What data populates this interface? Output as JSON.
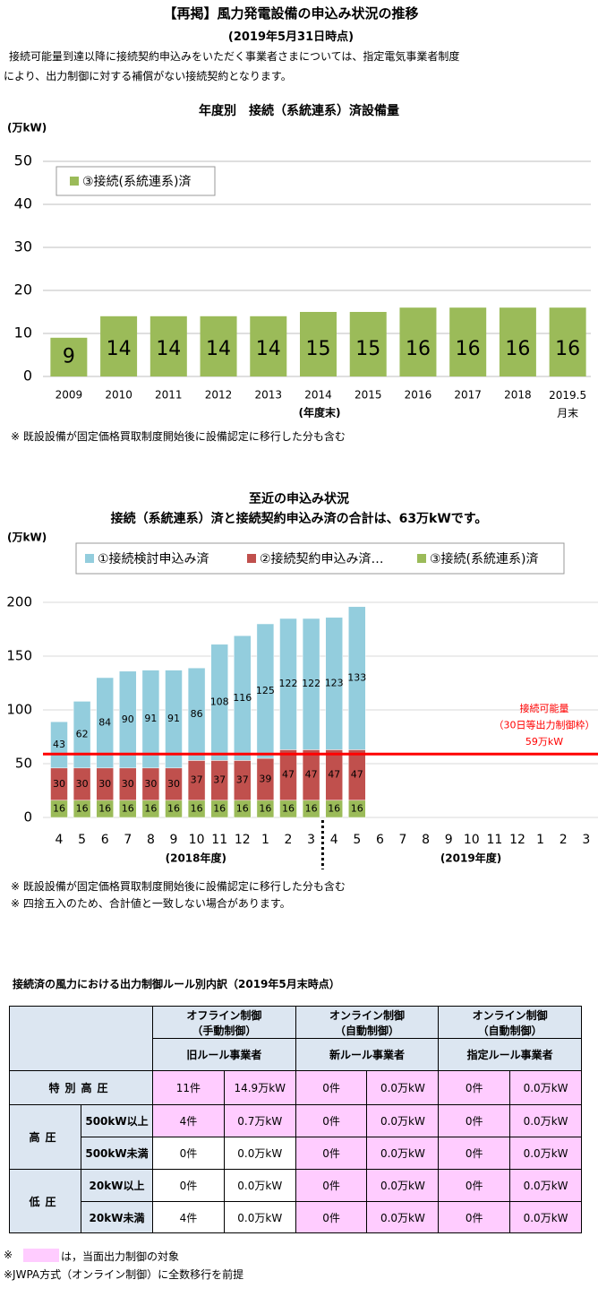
{
  "header": {
    "title": "【再掲】風力発電設備の申込み状況の推移",
    "subtitle": "(2019年5月31日時点)",
    "intro": [
      "接続可能量到達以降に接続契約申込みをいただく事業者さまについては、指定電気事業者制度",
      "により、出力制御に対する補償がない接続契約となります。"
    ]
  },
  "chart_data": [
    {
      "type": "bar",
      "title": "年度別　接続（系統連系）済設備量",
      "y_label": "(万kW)",
      "x_label": "(年度末)",
      "categories": [
        "2009",
        "2010",
        "2011",
        "2012",
        "2013",
        "2014",
        "2015",
        "2016",
        "2017",
        "2018",
        "2019.5\n月末"
      ],
      "series": [
        {
          "name": "③接続(系統連系)済",
          "color": "#9bbb59",
          "values": [
            9,
            14,
            14,
            14,
            14,
            15,
            15,
            16,
            16,
            16,
            16
          ]
        }
      ],
      "ylim": [
        0,
        50
      ],
      "yticks": [
        0,
        10,
        20,
        30,
        40,
        50
      ],
      "grid": true,
      "legend": "upper left",
      "notes": [
        "※ 既設設備が固定価格買取制度開始後に設備認定に移行した分も含む"
      ]
    },
    {
      "type": "stacked_bar",
      "title": "至近の申込み状況",
      "subtitle": "接続（系統連系）済と接続契約申込み済の合計は、63万kWです。",
      "y_label": "(万kW)",
      "categories": [
        "4",
        "5",
        "6",
        "7",
        "8",
        "9",
        "10",
        "11",
        "12",
        "1",
        "2",
        "3",
        "4",
        "5",
        "6",
        "7",
        "8",
        "9",
        "10",
        "11",
        "12",
        "1",
        "2",
        "3"
      ],
      "period_labels": [
        "(2018年度)",
        "(2019年度)"
      ],
      "series": [
        {
          "name": "①接続検討申込み済",
          "color": "#93cddd",
          "values": [
            43,
            62,
            84,
            90,
            91,
            91,
            86,
            108,
            116,
            125,
            122,
            122,
            123,
            133,
            null,
            null,
            null,
            null,
            null,
            null,
            null,
            null,
            null,
            null
          ]
        },
        {
          "name": "②接続契約申込み済…",
          "color": "#c0504d",
          "values": [
            30,
            30,
            30,
            30,
            30,
            30,
            37,
            37,
            37,
            39,
            47,
            47,
            47,
            47,
            null,
            null,
            null,
            null,
            null,
            null,
            null,
            null,
            null,
            null
          ]
        },
        {
          "name": "③接続(系統連系)済",
          "color": "#9bbb59",
          "values": [
            16,
            16,
            16,
            16,
            16,
            16,
            16,
            16,
            16,
            16,
            16,
            16,
            16,
            16,
            null,
            null,
            null,
            null,
            null,
            null,
            null,
            null,
            null,
            null
          ]
        }
      ],
      "ylim": [
        0,
        200
      ],
      "yticks": [
        0,
        50,
        100,
        150,
        200
      ],
      "grid": true,
      "legend": "top",
      "reference_line": {
        "value": 59,
        "color": "#ff0000",
        "label": [
          "接続可能量",
          "（30日等出力制御枠）",
          "59万kW"
        ]
      },
      "notes": [
        "※ 既設設備が固定価格買取制度開始後に設備認定に移行した分も含む",
        "※ 四捨五入のため、合計値と一致しない場合があります。"
      ]
    }
  ],
  "table": {
    "title": "接続済の風力における出力制御ルール別内訳（2019年5月末時点）",
    "groups": [
      "オフライン制御\n（手動制御）",
      "オンライン制御\n（自動制御）",
      "オンライン制御\n（自動制御）"
    ],
    "rules": [
      "旧ルール事業者",
      "新ルール事業者",
      "指定ルール事業者"
    ],
    "rows": [
      {
        "label": "特別高圧",
        "cells": [
          "11件",
          "14.9万kW",
          "0件",
          "0.0万kW",
          "0件",
          "0.0万kW"
        ]
      },
      {
        "group": "高圧",
        "label": "500kW以上",
        "cells": [
          "4件",
          "0.7万kW",
          "0件",
          "0.0万kW",
          "0件",
          "0.0万kW"
        ]
      },
      {
        "label": "500kW未満",
        "cells": [
          "0件",
          "0.0万kW",
          "0件",
          "0.0万kW",
          "0件",
          "0.0万kW"
        ]
      },
      {
        "group": "低圧",
        "label": "20kW以上",
        "cells": [
          "0件",
          "0.0万kW",
          "0件",
          "0.0万kW",
          "0件",
          "0.0万kW"
        ]
      },
      {
        "label": "20kW未満",
        "cells": [
          "4件",
          "0.0万kW",
          "0件",
          "0.0万kW",
          "0件",
          "0.0万kW"
        ]
      }
    ]
  },
  "footnotes": [
    {
      "lead": "※",
      "text": "は，当面出力制御の対象"
    },
    {
      "text": "※JWPA方式（オンライン制御）に全数移行を前提"
    }
  ]
}
